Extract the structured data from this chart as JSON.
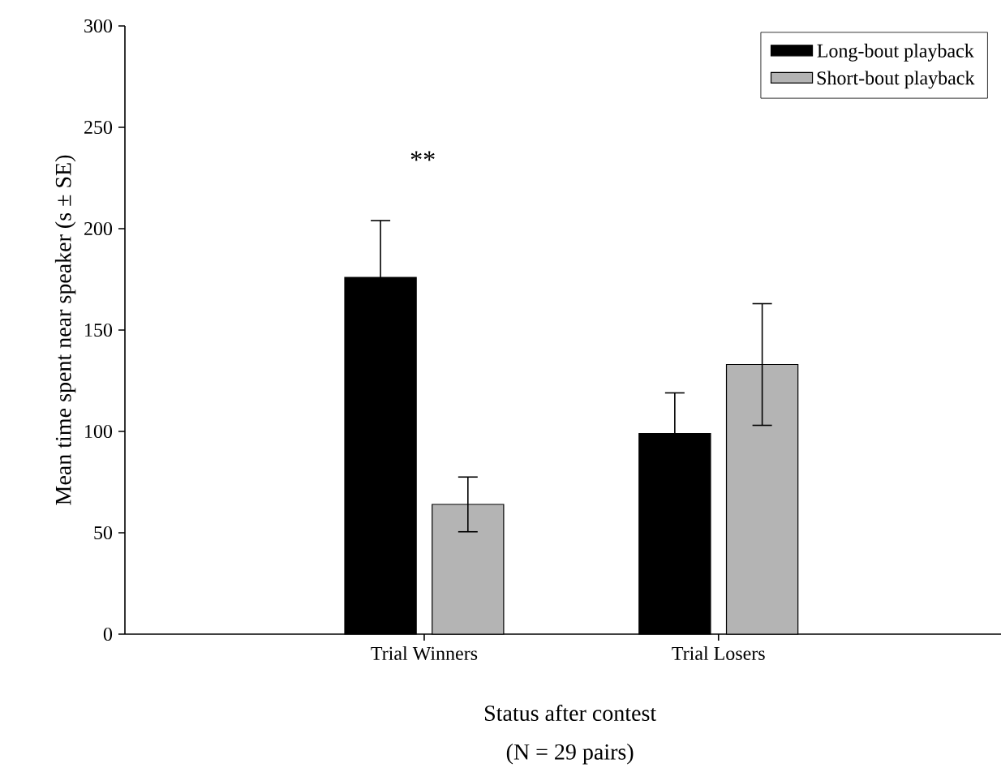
{
  "chart_data": {
    "type": "bar",
    "xlabel": "Status after contest",
    "ylabel": "Mean time spent near speaker (s ± SE)",
    "categories": [
      "Trial Winners",
      "Trial Losers"
    ],
    "series": [
      {
        "name": "Long-bout playback",
        "color": "#000000",
        "values": [
          176,
          99
        ],
        "errors": [
          28,
          20
        ]
      },
      {
        "name": "Short-bout playback",
        "color": "#b4b4b4",
        "values": [
          64,
          133
        ],
        "errors": [
          13.5,
          30
        ]
      }
    ],
    "ylim": [
      0,
      300
    ],
    "yticks": [
      0,
      50,
      100,
      150,
      200,
      250,
      300
    ],
    "legend": "top right",
    "grid": false,
    "annotations": [
      "**",
      "(N = 29 pairs)"
    ]
  }
}
